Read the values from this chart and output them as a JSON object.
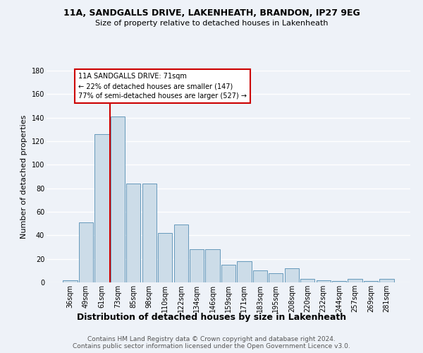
{
  "title_line1": "11A, SANDGALLS DRIVE, LAKENHEATH, BRANDON, IP27 9EG",
  "title_line2": "Size of property relative to detached houses in Lakenheath",
  "xlabel": "Distribution of detached houses by size in Lakenheath",
  "ylabel": "Number of detached properties",
  "categories": [
    "36sqm",
    "49sqm",
    "61sqm",
    "73sqm",
    "85sqm",
    "98sqm",
    "110sqm",
    "122sqm",
    "134sqm",
    "146sqm",
    "159sqm",
    "171sqm",
    "183sqm",
    "195sqm",
    "208sqm",
    "220sqm",
    "232sqm",
    "244sqm",
    "257sqm",
    "269sqm",
    "281sqm"
  ],
  "values": [
    2,
    51,
    126,
    141,
    84,
    84,
    42,
    49,
    28,
    28,
    15,
    18,
    10,
    8,
    12,
    3,
    2,
    1,
    3,
    1,
    3
  ],
  "bar_color": "#ccdce8",
  "bar_edge_color": "#6699bb",
  "vline_x": 2.5,
  "vline_color": "#cc0000",
  "annotation_text": "11A SANDGALLS DRIVE: 71sqm\n← 22% of detached houses are smaller (147)\n77% of semi-detached houses are larger (527) →",
  "annotation_box_color": "#ffffff",
  "annotation_box_edge": "#cc0000",
  "ylim": [
    0,
    180
  ],
  "yticks": [
    0,
    20,
    40,
    60,
    80,
    100,
    120,
    140,
    160,
    180
  ],
  "footer": "Contains HM Land Registry data © Crown copyright and database right 2024.\nContains public sector information licensed under the Open Government Licence v3.0.",
  "bg_color": "#eef2f8",
  "grid_color": "#ffffff",
  "title_fontsize": 9,
  "subtitle_fontsize": 8,
  "xlabel_fontsize": 9,
  "ylabel_fontsize": 8,
  "tick_fontsize": 7,
  "footer_fontsize": 6.5
}
